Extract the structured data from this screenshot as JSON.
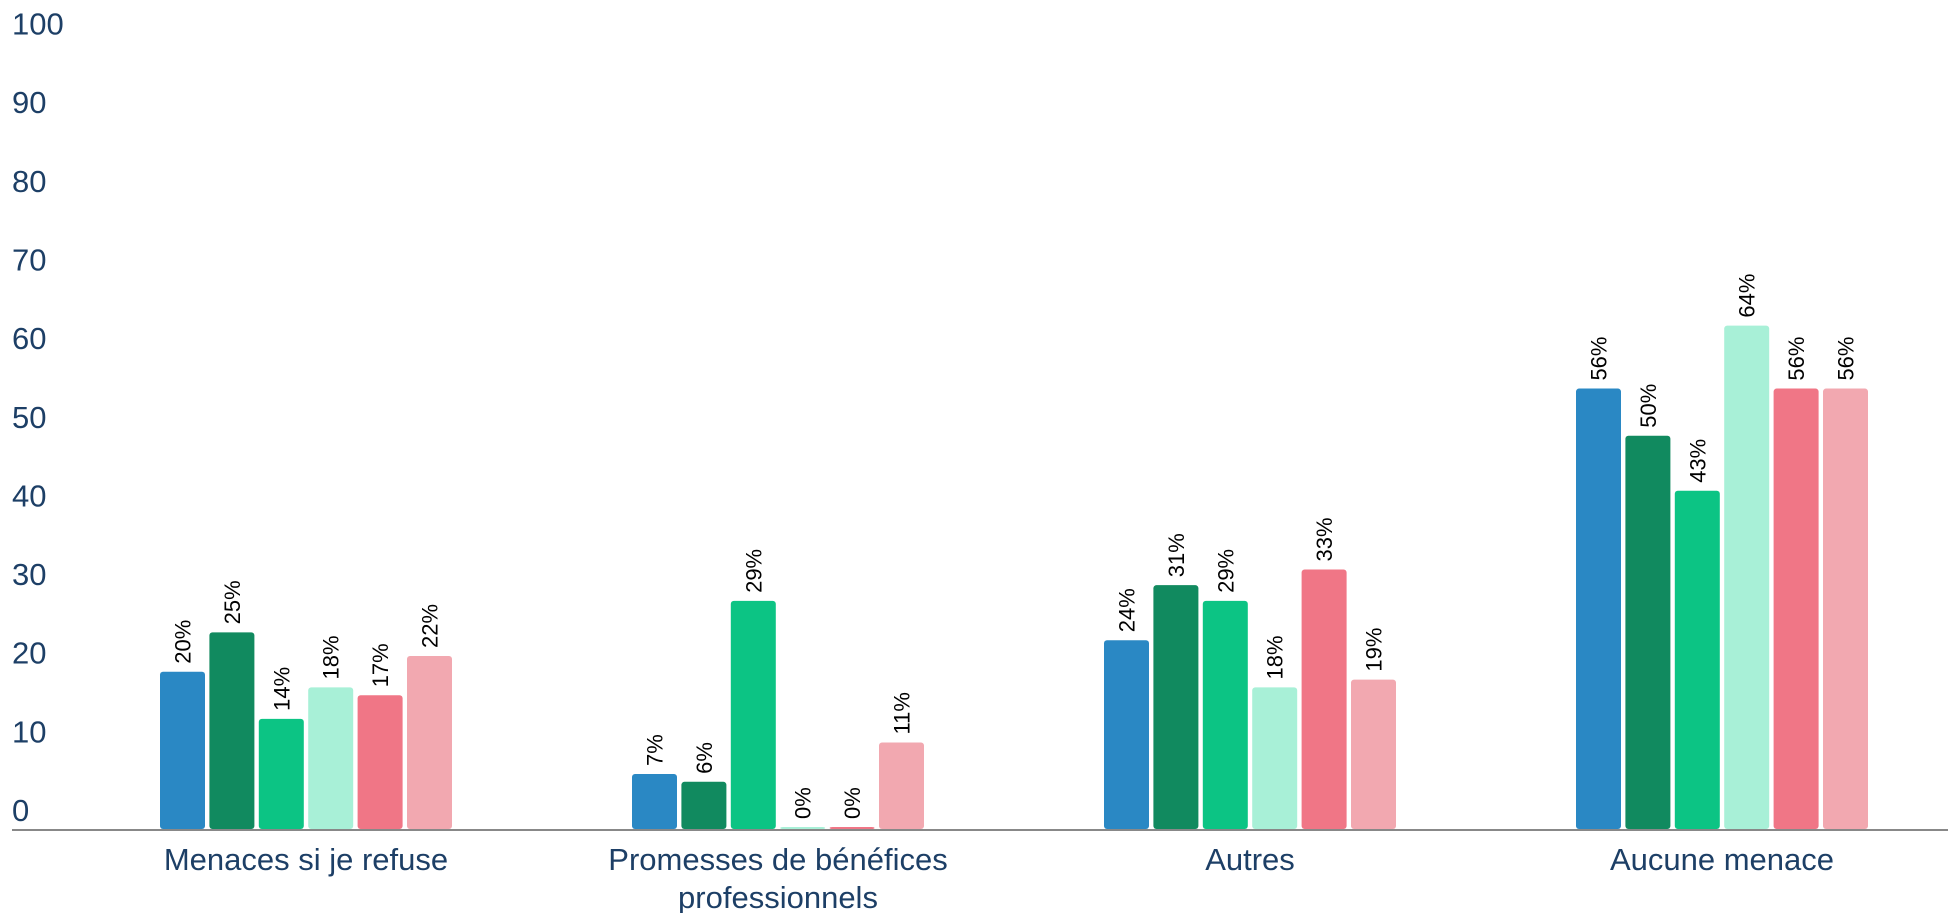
{
  "chart_data": {
    "type": "bar",
    "title": "",
    "xlabel": "",
    "ylabel": "",
    "ylim": [
      0,
      100
    ],
    "yticks": [
      0,
      10,
      20,
      30,
      40,
      50,
      60,
      70,
      80,
      90,
      100
    ],
    "grid": false,
    "legend": "none",
    "categories": [
      [
        "Menaces si je refuse"
      ],
      [
        "Promesses de bénéfices",
        "professionnels"
      ],
      [
        "Autres"
      ],
      [
        "Aucune menace"
      ]
    ],
    "series": [
      {
        "color": "#2a88c4",
        "values": [
          20,
          7,
          24,
          56
        ],
        "labels": [
          "20%",
          "7%",
          "24%",
          "56%"
        ]
      },
      {
        "color": "#118a5f",
        "values": [
          25,
          6,
          31,
          50
        ],
        "labels": [
          "25%",
          "6%",
          "31%",
          "50%"
        ]
      },
      {
        "color": "#0cc484",
        "values": [
          14,
          29,
          29,
          43
        ],
        "labels": [
          "14%",
          "29%",
          "29%",
          "43%"
        ]
      },
      {
        "color": "#a8f0d7",
        "values": [
          18,
          0,
          18,
          64
        ],
        "labels": [
          "18%",
          "0%",
          "18%",
          "64%"
        ]
      },
      {
        "color": "#f07686",
        "values": [
          17,
          0,
          33,
          56
        ],
        "labels": [
          "17%",
          "0%",
          "33%",
          "56%"
        ]
      },
      {
        "color": "#f2a8b0",
        "values": [
          22,
          11,
          19,
          56
        ],
        "labels": [
          "22%",
          "11%",
          "19%",
          "56%"
        ]
      }
    ],
    "colors": {
      "axis": "#888888",
      "tick_text": "#1d3f66",
      "label_text": "#000000"
    }
  }
}
